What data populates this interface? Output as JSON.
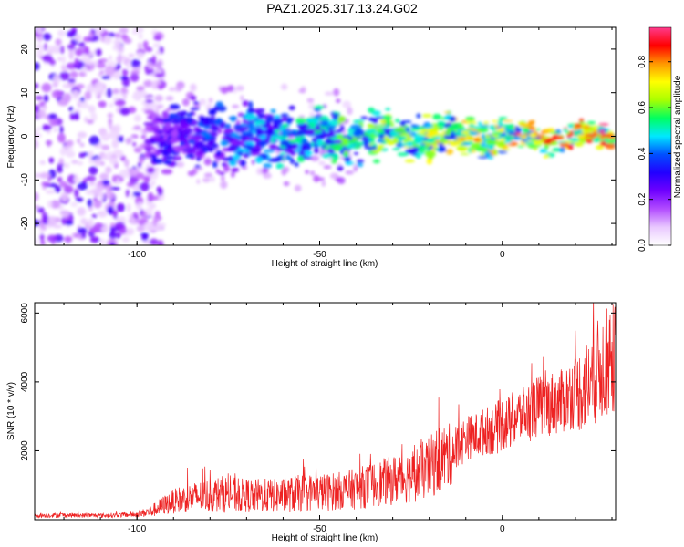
{
  "title": "PAZ1.2025.317.13.24.G02",
  "chart_data": [
    {
      "type": "heatmap",
      "name": "spectrogram",
      "xlabel": "Height of straight line (km)",
      "ylabel": "Frequency (Hz)",
      "xlim": [
        -128,
        31
      ],
      "ylim": [
        -25,
        25
      ],
      "xticks": [
        -100,
        -50,
        0
      ],
      "yticks": [
        -20,
        -10,
        0,
        10,
        20
      ],
      "colorbar": {
        "label": "Normalized spectral amplitude",
        "range": [
          0,
          0.95
        ],
        "ticks": [
          0.0,
          0.2,
          0.4,
          0.6,
          0.8
        ],
        "colors": [
          "#ffffff",
          "#e9c8ff",
          "#b24cff",
          "#6f00ff",
          "#2200ff",
          "#0050ff",
          "#00e8ff",
          "#00ff60",
          "#aaff00",
          "#ffff00",
          "#ff9600",
          "#ff0000",
          "#ff3a8c"
        ]
      },
      "features": [
        {
          "label": "scattered noise",
          "x_range": [
            -128,
            -97
          ],
          "amplitude": [
            0.05,
            0.3
          ]
        },
        {
          "label": "signal band",
          "x_range": [
            -97,
            31
          ],
          "freq_center": 0,
          "freq_width": [
            10,
            3
          ],
          "amplitude": [
            0.3,
            0.95
          ]
        }
      ]
    },
    {
      "type": "line",
      "name": "snr",
      "xlabel": "Height of straight line (km)",
      "ylabel": "SNR (10 * v/v)",
      "xlim": [
        -128,
        31
      ],
      "ylim": [
        0,
        6300
      ],
      "xticks": [
        -100,
        -50,
        0
      ],
      "yticks": [
        2000,
        4000,
        6000
      ],
      "color": "#ee2222",
      "series": [
        {
          "name": "SNR",
          "x": [
            -128,
            -120,
            -110,
            -100,
            -96,
            -92,
            -88,
            -84,
            -80,
            -76,
            -72,
            -68,
            -64,
            -60,
            -56,
            -52,
            -48,
            -44,
            -40,
            -36,
            -32,
            -28,
            -24,
            -20,
            -18,
            -16,
            -14,
            -12,
            -10,
            -8,
            -6,
            -4,
            -2,
            0,
            2,
            4,
            6,
            8,
            10,
            12,
            14,
            16,
            18,
            20,
            22,
            24,
            26,
            28,
            30
          ],
          "mean": [
            120,
            130,
            120,
            150,
            250,
            450,
            600,
            650,
            700,
            750,
            700,
            700,
            700,
            700,
            750,
            800,
            800,
            850,
            900,
            1000,
            1100,
            1200,
            1300,
            1500,
            1700,
            1800,
            1900,
            2100,
            2400,
            2400,
            2500,
            2600,
            2600,
            2800,
            2800,
            3000,
            3000,
            3200,
            3300,
            3300,
            3400,
            3400,
            3600,
            3700,
            3800,
            4000,
            4300,
            4500,
            4700
          ],
          "amp": [
            60,
            70,
            60,
            80,
            180,
            300,
            400,
            450,
            500,
            550,
            500,
            500,
            500,
            500,
            550,
            550,
            550,
            550,
            600,
            650,
            700,
            750,
            800,
            900,
            1000,
            1000,
            900,
            700,
            650,
            650,
            700,
            700,
            750,
            800,
            800,
            850,
            850,
            900,
            900,
            900,
            950,
            950,
            1000,
            1100,
            1300,
            1400,
            1500,
            1600,
            1600
          ]
        }
      ]
    }
  ]
}
